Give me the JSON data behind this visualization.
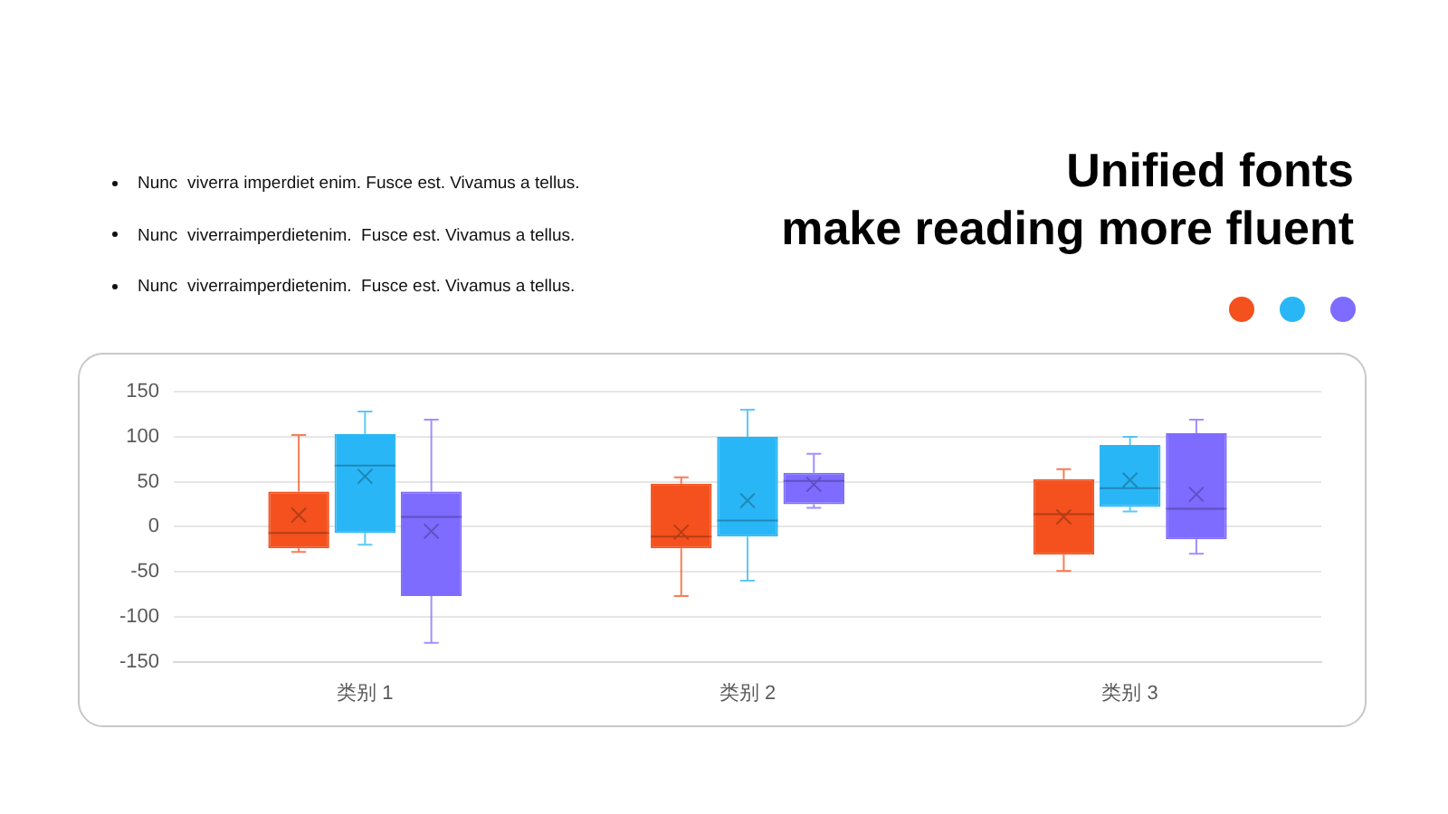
{
  "chart_data": {
    "type": "box",
    "title": "Unified fonts\nmake reading more fluent",
    "annotations": [
      "Nunc  viverra imperdiet enim. Fusce est. Vivamus a tellus.",
      "Nunc  viverraimperdietenim.  Fusce est. Vivamus a tellus.",
      "Nunc  viverraimperdietenim.  Fusce est. Vivamus a tellus."
    ],
    "categories": [
      "类别 1",
      "类别 2",
      "类别 3"
    ],
    "series": [
      {
        "color": "#f4511e",
        "boxes": [
          {
            "low": -28,
            "q1": -24,
            "median": -7,
            "q3": 39,
            "high": 102,
            "mean": 13
          },
          {
            "low": -77,
            "q1": -24,
            "median": -11,
            "q3": 48,
            "high": 55,
            "mean": -6
          },
          {
            "low": -49,
            "q1": -31,
            "median": 14,
            "q3": 53,
            "high": 64,
            "mean": 11
          }
        ]
      },
      {
        "color": "#29b6f6",
        "boxes": [
          {
            "low": -20,
            "q1": -7,
            "median": 68,
            "q3": 103,
            "high": 128,
            "mean": 56
          },
          {
            "low": -60,
            "q1": -11,
            "median": 7,
            "q3": 100,
            "high": 130,
            "mean": 29
          },
          {
            "low": 17,
            "q1": 22,
            "median": 43,
            "q3": 91,
            "high": 100,
            "mean": 52
          }
        ]
      },
      {
        "color": "#7e6bff",
        "boxes": [
          {
            "low": -129,
            "q1": -77,
            "median": 11,
            "q3": 39,
            "high": 119,
            "mean": -5
          },
          {
            "low": 21,
            "q1": 25,
            "median": 51,
            "q3": 60,
            "high": 81,
            "mean": 47
          },
          {
            "low": -30,
            "q1": -14,
            "median": 20,
            "q3": 104,
            "high": 119,
            "mean": 36
          }
        ]
      }
    ],
    "ylim": [
      -150,
      150
    ],
    "yticks": [
      -150,
      -100,
      -50,
      0,
      50,
      100,
      150
    ],
    "grid": "y"
  }
}
